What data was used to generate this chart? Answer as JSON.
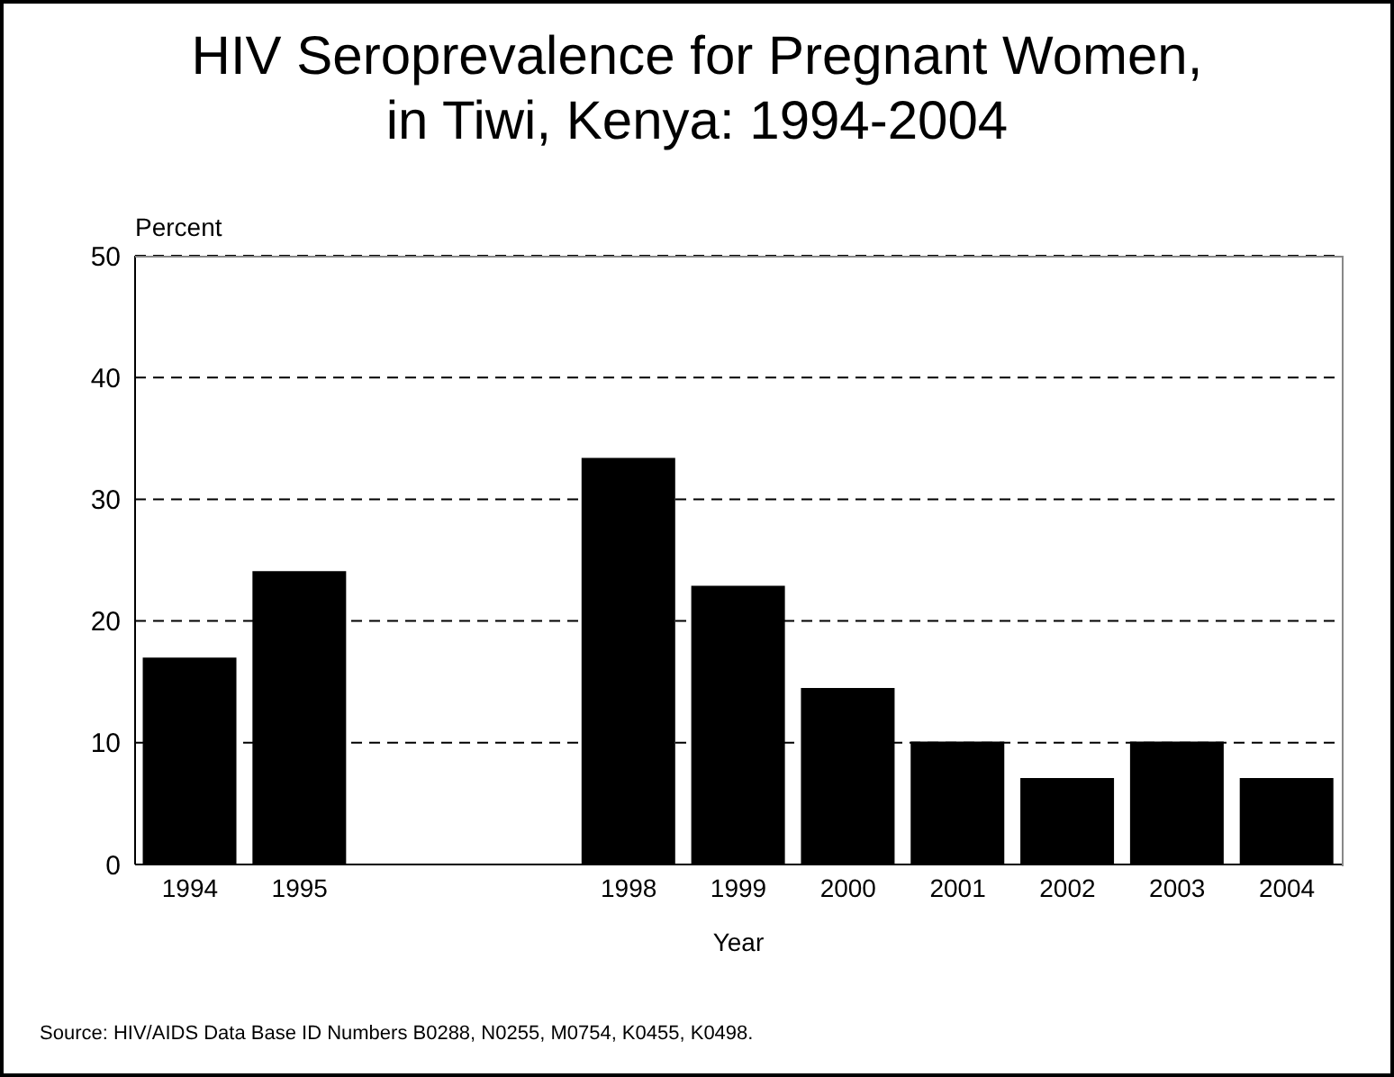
{
  "chart_data": {
    "type": "bar",
    "title": "HIV Seroprevalence for Pregnant Women,\nin Tiwi, Kenya:  1994-2004",
    "xlabel": "Year",
    "ylabel": "Percent",
    "categories": [
      "1994",
      "1995",
      null,
      null,
      "1998",
      "1999",
      "2000",
      "2001",
      "2002",
      "2003",
      "2004"
    ],
    "values": [
      17,
      24.1,
      null,
      null,
      33.4,
      22.9,
      14.5,
      10.1,
      7.1,
      10.1,
      7.1
    ],
    "color": "#000000",
    "ylim": [
      0,
      50
    ],
    "yticks": [
      0,
      10,
      20,
      30,
      40,
      50
    ],
    "grid": "y",
    "annotations": [
      "Source:  HIV/AIDS Data Base ID Numbers B0288, N0255, M0754, K0455, K0498."
    ]
  }
}
